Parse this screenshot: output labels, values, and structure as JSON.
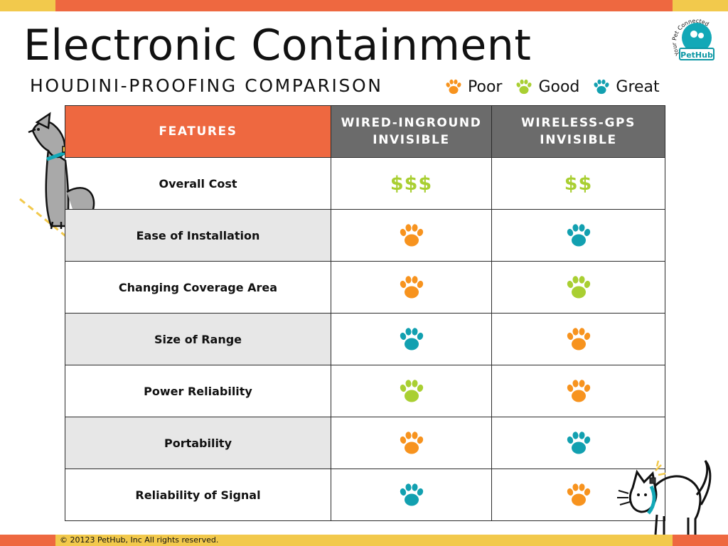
{
  "header": {
    "title": "Electronic Containment",
    "subtitle": "HOUDINI-PROOFING COMPARISON"
  },
  "legend": [
    {
      "label": "Poor",
      "rating": "poor"
    },
    {
      "label": "Good",
      "rating": "good"
    },
    {
      "label": "Great",
      "rating": "great"
    }
  ],
  "rating_colors": {
    "poor": "#f7931e",
    "good": "#a9cf32",
    "great": "#12a0b0"
  },
  "colors": {
    "accent": "#ee6840",
    "yellow": "#f2c94c",
    "header_gray": "#6b6b6b",
    "teal": "#12a8b7"
  },
  "logo": {
    "arc_text": "Your Pet Connected",
    "badge_text": "PetHub"
  },
  "table": {
    "columns": [
      "FEATURES",
      "WIRED-INGROUND INVISIBLE",
      "WIRELESS-GPS INVISIBLE"
    ],
    "rows": [
      {
        "feature": "Overall Cost",
        "wired": "$$$",
        "wireless": "$$"
      },
      {
        "feature": "Ease of Installation",
        "wired": "poor",
        "wireless": "great"
      },
      {
        "feature": "Changing Coverage Area",
        "wired": "poor",
        "wireless": "good"
      },
      {
        "feature": "Size of Range",
        "wired": "great",
        "wireless": "poor"
      },
      {
        "feature": "Power Reliability",
        "wired": "good",
        "wireless": "poor"
      },
      {
        "feature": "Portability",
        "wired": "poor",
        "wireless": "great"
      },
      {
        "feature": "Reliability of Signal",
        "wired": "great",
        "wireless": "poor"
      }
    ]
  },
  "footer": {
    "copyright": "© 20123 PetHub, Inc All rights reserved."
  }
}
